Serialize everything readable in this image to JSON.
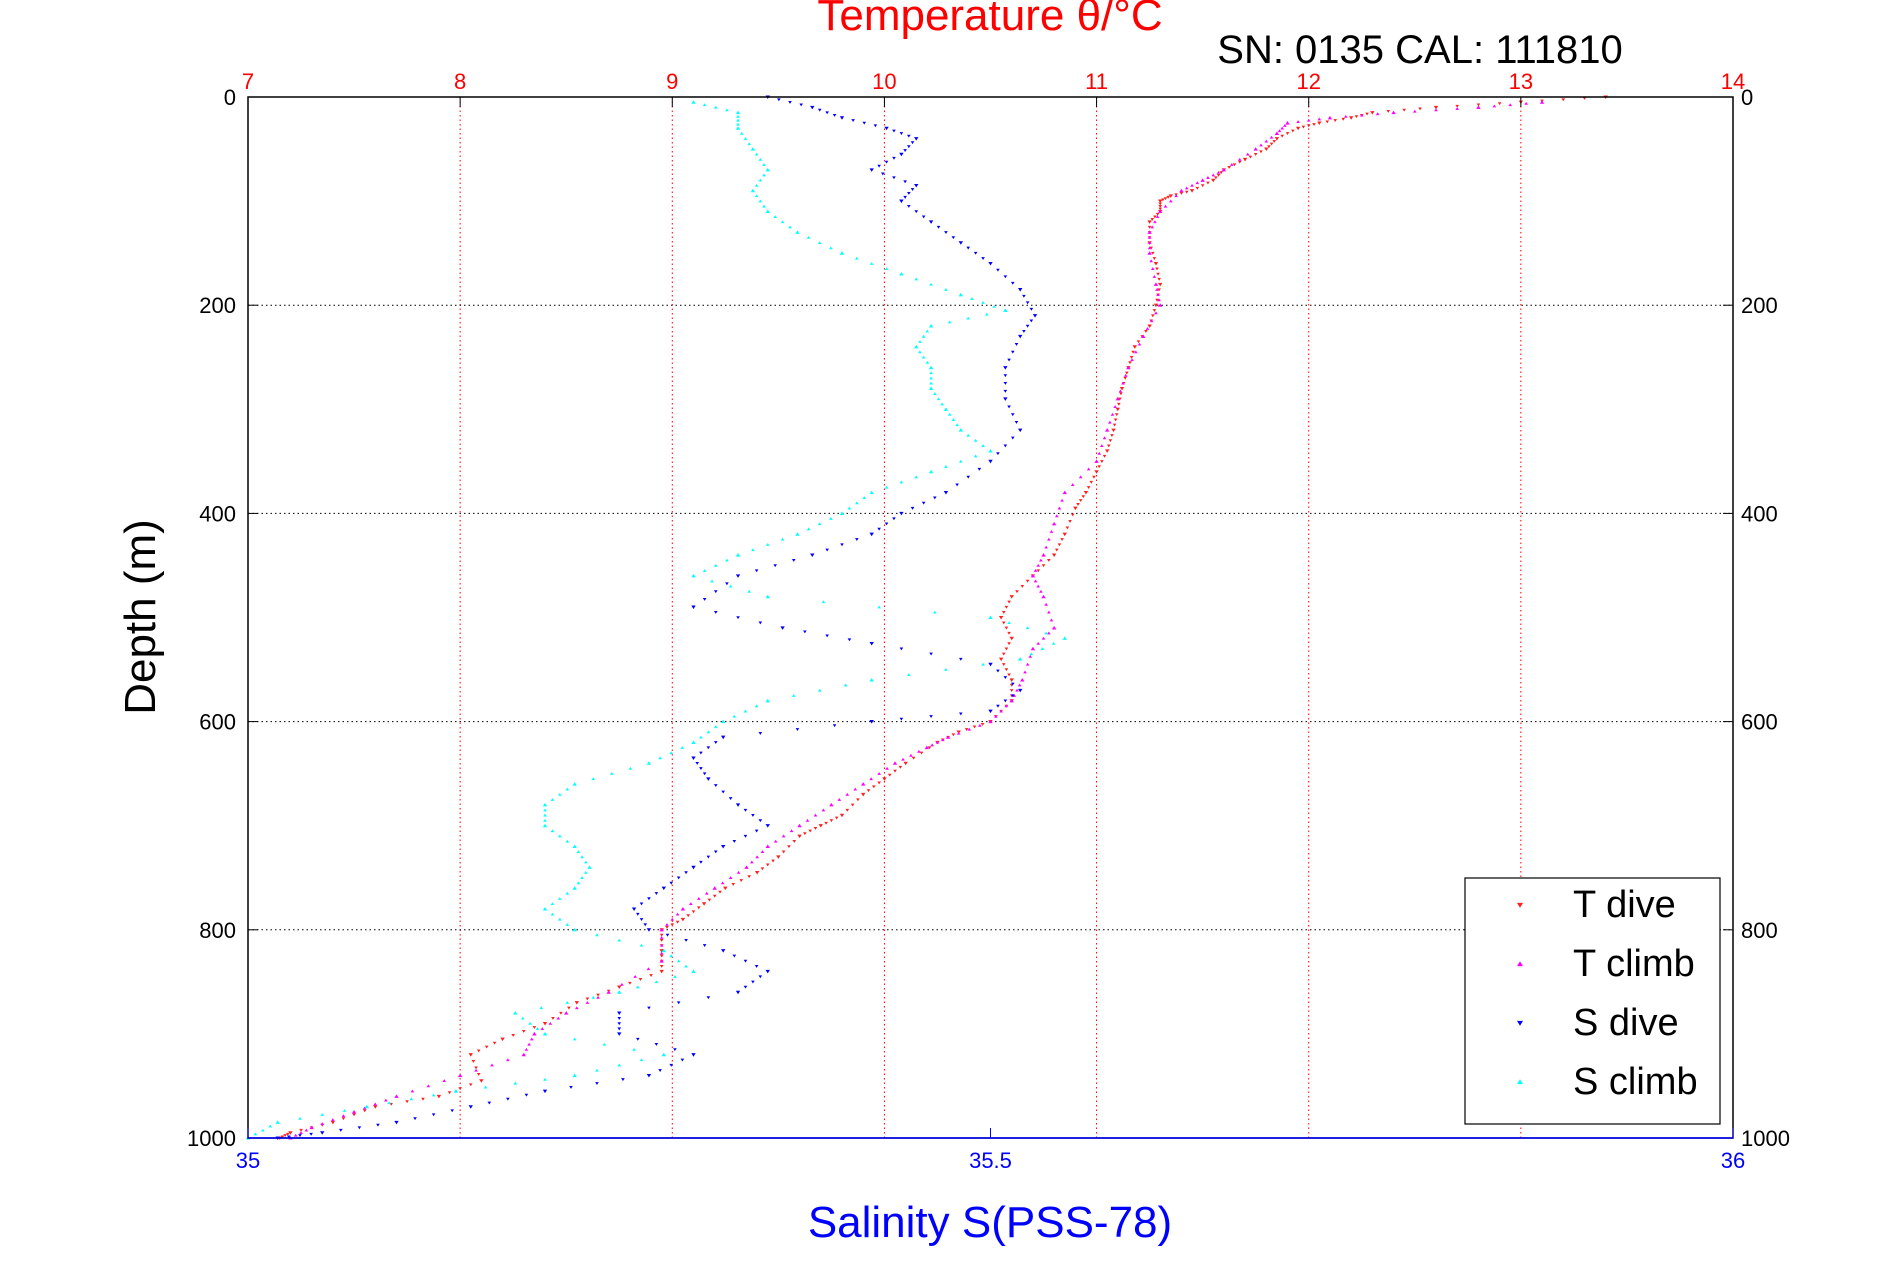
{
  "chart_data": {
    "type": "scatter",
    "title": "Temperature θ/°C",
    "annotation": "SN: 0135  CAL: 111810",
    "xlabel": "Salinity S(PSS-78)",
    "ylabel": "Depth (m)",
    "top_axis": {
      "range": [
        7,
        14
      ],
      "ticks": [
        7,
        8,
        9,
        10,
        11,
        12,
        13,
        14
      ]
    },
    "bottom_axis": {
      "range": [
        35,
        36
      ],
      "ticks": [
        35,
        35.5,
        36
      ],
      "tick_labels": [
        "35",
        "35.5",
        "36"
      ]
    },
    "y_axis": {
      "range": [
        0,
        1000
      ],
      "reversed": true,
      "ticks": [
        0,
        200,
        400,
        600,
        800,
        1000
      ]
    },
    "grid": true,
    "legend_position": "bottom-right",
    "colors": {
      "title": "#ff0000",
      "top_ticks": "#ff0000",
      "bottom_ticks": "#0000ff",
      "xlabel": "#0000ff",
      "grid_vertical": "#ff0000",
      "grid_horizontal": "#000000"
    },
    "series": [
      {
        "name": "T dive",
        "axis": "top",
        "color": "#ff2020",
        "marker": "triangle-down",
        "points": [
          [
            13.4,
            0
          ],
          [
            13.0,
            5
          ],
          [
            12.6,
            10
          ],
          [
            12.3,
            15
          ],
          [
            12.2,
            20
          ],
          [
            12.05,
            25
          ],
          [
            11.95,
            30
          ],
          [
            11.85,
            40
          ],
          [
            11.8,
            50
          ],
          [
            11.7,
            60
          ],
          [
            11.6,
            70
          ],
          [
            11.55,
            80
          ],
          [
            11.45,
            90
          ],
          [
            11.35,
            95
          ],
          [
            11.3,
            100
          ],
          [
            11.3,
            110
          ],
          [
            11.25,
            120
          ],
          [
            11.25,
            140
          ],
          [
            11.28,
            160
          ],
          [
            11.3,
            180
          ],
          [
            11.28,
            200
          ],
          [
            11.25,
            220
          ],
          [
            11.18,
            240
          ],
          [
            11.15,
            260
          ],
          [
            11.12,
            280
          ],
          [
            11.1,
            300
          ],
          [
            11.08,
            320
          ],
          [
            11.05,
            340
          ],
          [
            11.0,
            360
          ],
          [
            10.95,
            380
          ],
          [
            10.9,
            395
          ],
          [
            10.85,
            420
          ],
          [
            10.8,
            440
          ],
          [
            10.7,
            460
          ],
          [
            10.6,
            480
          ],
          [
            10.55,
            500
          ],
          [
            10.6,
            520
          ],
          [
            10.55,
            540
          ],
          [
            10.6,
            560
          ],
          [
            10.6,
            580
          ],
          [
            10.5,
            600
          ],
          [
            10.35,
            610
          ],
          [
            10.25,
            620
          ],
          [
            10.1,
            640
          ],
          [
            10.0,
            655
          ],
          [
            9.9,
            670
          ],
          [
            9.8,
            690
          ],
          [
            9.7,
            700
          ],
          [
            9.6,
            710
          ],
          [
            9.5,
            730
          ],
          [
            9.4,
            745
          ],
          [
            9.25,
            760
          ],
          [
            9.15,
            775
          ],
          [
            9.05,
            790
          ],
          [
            8.95,
            800
          ],
          [
            8.95,
            820
          ],
          [
            8.95,
            840
          ],
          [
            8.75,
            855
          ],
          [
            8.55,
            870
          ],
          [
            8.4,
            890
          ],
          [
            8.2,
            905
          ],
          [
            8.05,
            920
          ],
          [
            8.1,
            945
          ],
          [
            7.9,
            960
          ],
          [
            7.6,
            970
          ],
          [
            7.4,
            985
          ],
          [
            7.2,
            995
          ],
          [
            7.15,
            1000
          ]
        ]
      },
      {
        "name": "T climb",
        "axis": "top",
        "color": "#ff00ff",
        "marker": "triangle-up",
        "points": [
          [
            13.1,
            5
          ],
          [
            12.8,
            10
          ],
          [
            12.4,
            15
          ],
          [
            12.1,
            20
          ],
          [
            11.9,
            25
          ],
          [
            11.85,
            35
          ],
          [
            11.75,
            50
          ],
          [
            11.6,
            70
          ],
          [
            11.5,
            80
          ],
          [
            11.4,
            90
          ],
          [
            11.3,
            110
          ],
          [
            11.25,
            130
          ],
          [
            11.25,
            150
          ],
          [
            11.28,
            180
          ],
          [
            11.3,
            200
          ],
          [
            11.22,
            230
          ],
          [
            11.15,
            260
          ],
          [
            11.1,
            290
          ],
          [
            11.05,
            320
          ],
          [
            11.0,
            350
          ],
          [
            10.85,
            380
          ],
          [
            10.8,
            410
          ],
          [
            10.75,
            440
          ],
          [
            10.7,
            460
          ],
          [
            10.75,
            480
          ],
          [
            10.8,
            510
          ],
          [
            10.7,
            530
          ],
          [
            10.65,
            560
          ],
          [
            10.6,
            580
          ],
          [
            10.5,
            600
          ],
          [
            10.3,
            615
          ],
          [
            10.2,
            625
          ],
          [
            10.05,
            640
          ],
          [
            9.9,
            660
          ],
          [
            9.75,
            680
          ],
          [
            9.6,
            700
          ],
          [
            9.45,
            720
          ],
          [
            9.35,
            740
          ],
          [
            9.2,
            760
          ],
          [
            9.05,
            780
          ],
          [
            8.95,
            800
          ],
          [
            8.95,
            830
          ],
          [
            8.7,
            860
          ],
          [
            8.5,
            880
          ],
          [
            8.35,
            900
          ],
          [
            8.3,
            920
          ],
          [
            8.0,
            940
          ],
          [
            7.7,
            960
          ],
          [
            7.5,
            975
          ],
          [
            7.3,
            990
          ],
          [
            7.2,
            1000
          ]
        ]
      },
      {
        "name": "S dive",
        "axis": "bottom",
        "color": "#0000ff",
        "marker": "triangle-down",
        "points": [
          [
            35.35,
            0
          ],
          [
            35.38,
            10
          ],
          [
            35.4,
            20
          ],
          [
            35.43,
            30
          ],
          [
            35.45,
            40
          ],
          [
            35.44,
            55
          ],
          [
            35.42,
            70
          ],
          [
            35.45,
            85
          ],
          [
            35.44,
            100
          ],
          [
            35.46,
            120
          ],
          [
            35.48,
            140
          ],
          [
            35.5,
            160
          ],
          [
            35.52,
            185
          ],
          [
            35.53,
            210
          ],
          [
            35.52,
            230
          ],
          [
            35.51,
            260
          ],
          [
            35.51,
            290
          ],
          [
            35.52,
            320
          ],
          [
            35.5,
            350
          ],
          [
            35.47,
            380
          ],
          [
            35.44,
            400
          ],
          [
            35.42,
            420
          ],
          [
            35.38,
            440
          ],
          [
            35.33,
            460
          ],
          [
            35.3,
            490
          ],
          [
            35.36,
            510
          ],
          [
            35.42,
            525
          ],
          [
            35.5,
            545
          ],
          [
            35.52,
            570
          ],
          [
            35.5,
            590
          ],
          [
            35.42,
            600
          ],
          [
            35.32,
            615
          ],
          [
            35.3,
            635
          ],
          [
            35.31,
            655
          ],
          [
            35.33,
            680
          ],
          [
            35.35,
            700
          ],
          [
            35.32,
            720
          ],
          [
            35.3,
            740
          ],
          [
            35.28,
            760
          ],
          [
            35.26,
            780
          ],
          [
            35.27,
            800
          ],
          [
            35.32,
            820
          ],
          [
            35.35,
            840
          ],
          [
            35.33,
            860
          ],
          [
            35.25,
            880
          ],
          [
            35.25,
            900
          ],
          [
            35.3,
            920
          ],
          [
            35.27,
            940
          ],
          [
            35.2,
            955
          ],
          [
            35.15,
            970
          ],
          [
            35.1,
            985
          ],
          [
            35.05,
            995
          ],
          [
            35.02,
            1000
          ]
        ]
      },
      {
        "name": "S climb",
        "axis": "bottom",
        "color": "#00ffff",
        "marker": "triangle-up",
        "points": [
          [
            35.3,
            5
          ],
          [
            35.33,
            15
          ],
          [
            35.33,
            30
          ],
          [
            35.34,
            50
          ],
          [
            35.35,
            70
          ],
          [
            35.34,
            90
          ],
          [
            35.35,
            110
          ],
          [
            35.37,
            130
          ],
          [
            35.4,
            150
          ],
          [
            35.44,
            170
          ],
          [
            35.48,
            190
          ],
          [
            35.51,
            205
          ],
          [
            35.46,
            220
          ],
          [
            35.45,
            240
          ],
          [
            35.46,
            260
          ],
          [
            35.46,
            280
          ],
          [
            35.47,
            300
          ],
          [
            35.48,
            320
          ],
          [
            35.5,
            340
          ],
          [
            35.46,
            360
          ],
          [
            35.42,
            380
          ],
          [
            35.4,
            400
          ],
          [
            35.37,
            420
          ],
          [
            35.33,
            440
          ],
          [
            35.3,
            460
          ],
          [
            35.35,
            480
          ],
          [
            35.5,
            500
          ],
          [
            35.55,
            520
          ],
          [
            35.52,
            540
          ],
          [
            35.42,
            560
          ],
          [
            35.35,
            580
          ],
          [
            35.32,
            600
          ],
          [
            35.3,
            620
          ],
          [
            35.27,
            640
          ],
          [
            35.22,
            660
          ],
          [
            35.2,
            680
          ],
          [
            35.2,
            700
          ],
          [
            35.22,
            720
          ],
          [
            35.23,
            740
          ],
          [
            35.22,
            760
          ],
          [
            35.2,
            780
          ],
          [
            35.22,
            800
          ],
          [
            35.28,
            820
          ],
          [
            35.3,
            840
          ],
          [
            35.25,
            860
          ],
          [
            35.18,
            880
          ],
          [
            35.2,
            900
          ],
          [
            35.28,
            920
          ],
          [
            35.22,
            940
          ],
          [
            35.14,
            955
          ],
          [
            35.08,
            970
          ],
          [
            35.02,
            985
          ],
          [
            35.0,
            1000
          ]
        ]
      }
    ]
  }
}
